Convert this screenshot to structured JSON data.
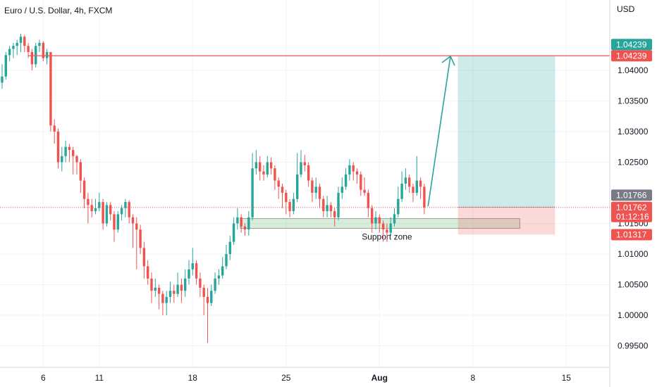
{
  "title": "Euro / U.S. Dollar, 4h, FXCM",
  "currency": "USD",
  "chart_data": {
    "type": "candlestick",
    "y_ticks": [
      "1.04000",
      "1.03500",
      "1.03000",
      "1.02500",
      "1.01500",
      "1.01000",
      "1.00500",
      "1.00000",
      "0.99500"
    ],
    "y_tick_values": [
      1.04,
      1.035,
      1.03,
      1.025,
      1.015,
      1.01,
      1.005,
      1.0,
      0.995
    ],
    "x_ticks": [
      "6",
      "11",
      "18",
      "25",
      "Aug",
      "8",
      "15"
    ],
    "x_tick_index": [
      11,
      26,
      51,
      76,
      101,
      126,
      151
    ],
    "ylim": [
      0.9915,
      1.0515
    ],
    "last_index": 113,
    "colors": {
      "up": "#26a69a",
      "down": "#ef5350",
      "target_line": "#ef5350",
      "arrow": "#26a69a"
    },
    "candles_close": [
      1.039,
      1.0425,
      1.0435,
      1.044,
      1.0445,
      1.0455,
      1.044,
      1.043,
      1.041,
      1.044,
      1.0445,
      1.042,
      1.043,
      1.034,
      1.031,
      1.025,
      1.026,
      1.0275,
      1.027,
      1.026,
      1.025,
      1.022,
      1.019,
      1.018,
      1.017,
      1.0175,
      1.0185,
      1.015,
      1.018,
      1.0165,
      1.014,
      1.0165,
      1.0175,
      1.0185,
      1.016,
      1.015,
      1.014,
      1.011,
      1.008,
      1.006,
      1.004,
      1.0045,
      1.0035,
      1.002,
      1.003,
      1.004,
      1.0035,
      1.005,
      1.004,
      1.006,
      1.0075,
      1.0085,
      1.006,
      1.0045,
      1.003,
      1.002,
      1.004,
      1.006,
      1.0065,
      1.008,
      1.01,
      1.012,
      1.015,
      1.016,
      1.0145,
      1.014,
      1.016,
      1.024,
      1.025,
      1.0235,
      1.023,
      1.025,
      1.024,
      1.022,
      1.021,
      1.02,
      1.0185,
      1.017,
      1.019,
      1.023,
      1.025,
      1.0245,
      1.022,
      1.02,
      1.021,
      1.019,
      1.017,
      1.018,
      1.017,
      1.016,
      1.02,
      1.021,
      1.023,
      1.0245,
      1.0235,
      1.023,
      1.0205,
      1.02,
      1.0175,
      1.015,
      1.016,
      1.015,
      1.014,
      1.0135,
      1.015,
      1.0165,
      1.019,
      1.0215,
      1.0225,
      1.021,
      1.02,
      1.022,
      1.021,
      1.0176
    ],
    "candles": [
      [
        1.038,
        1.041,
        1.037,
        1.039
      ],
      [
        1.039,
        1.043,
        1.0385,
        1.0425
      ],
      [
        1.0425,
        1.044,
        1.0415,
        1.0435
      ],
      [
        1.0435,
        1.0445,
        1.042,
        1.044
      ],
      [
        1.044,
        1.045,
        1.0425,
        1.0445
      ],
      [
        1.0445,
        1.046,
        1.043,
        1.0455
      ],
      [
        1.0455,
        1.0458,
        1.043,
        1.044
      ],
      [
        1.044,
        1.0445,
        1.042,
        1.043
      ],
      [
        1.043,
        1.0435,
        1.04,
        1.041
      ],
      [
        1.041,
        1.0445,
        1.0405,
        1.044
      ],
      [
        1.044,
        1.045,
        1.043,
        1.0445
      ],
      [
        1.0445,
        1.0448,
        1.0415,
        1.042
      ],
      [
        1.042,
        1.0435,
        1.041,
        1.043
      ],
      [
        1.043,
        1.043,
        1.03,
        1.031
      ],
      [
        1.031,
        1.032,
        1.028,
        1.03
      ],
      [
        1.03,
        1.0305,
        1.024,
        1.025
      ],
      [
        1.025,
        1.0275,
        1.0235,
        1.026
      ],
      [
        1.026,
        1.0285,
        1.025,
        1.0275
      ],
      [
        1.0275,
        1.028,
        1.025,
        1.027
      ],
      [
        1.027,
        1.0275,
        1.023,
        1.026
      ],
      [
        1.026,
        1.0262,
        1.023,
        1.025
      ],
      [
        1.025,
        1.0255,
        1.02,
        1.022
      ],
      [
        1.022,
        1.0225,
        1.0175,
        1.019
      ],
      [
        1.019,
        1.02,
        1.015,
        1.018
      ],
      [
        1.018,
        1.019,
        1.016,
        1.017
      ],
      [
        1.017,
        1.019,
        1.0165,
        1.0175
      ],
      [
        1.0175,
        1.02,
        1.017,
        1.0185
      ],
      [
        1.0185,
        1.019,
        1.014,
        1.015
      ],
      [
        1.015,
        1.0185,
        1.0145,
        1.018
      ],
      [
        1.018,
        1.0185,
        1.0155,
        1.0165
      ],
      [
        1.0165,
        1.017,
        1.012,
        1.014
      ],
      [
        1.014,
        1.017,
        1.0135,
        1.0165
      ],
      [
        1.0165,
        1.018,
        1.0155,
        1.0175
      ],
      [
        1.0175,
        1.019,
        1.016,
        1.0185
      ],
      [
        1.0185,
        1.0188,
        1.015,
        1.016
      ],
      [
        1.016,
        1.0165,
        1.011,
        1.015
      ],
      [
        1.015,
        1.016,
        1.0075,
        1.014
      ],
      [
        1.014,
        1.0148,
        1.01,
        1.011
      ],
      [
        1.011,
        1.012,
        1.006,
        1.008
      ],
      [
        1.008,
        1.009,
        1.005,
        1.006
      ],
      [
        1.006,
        1.007,
        1.002,
        1.004
      ],
      [
        1.004,
        1.006,
        1.003,
        1.0045
      ],
      [
        1.0045,
        1.005,
        1.001,
        1.0035
      ],
      [
        1.0035,
        1.004,
        1.0,
        1.002
      ],
      [
        1.002,
        1.004,
        1.0,
        1.003
      ],
      [
        1.003,
        1.0055,
        1.002,
        1.004
      ],
      [
        1.004,
        1.005,
        1.002,
        1.0035
      ],
      [
        1.0035,
        1.007,
        1.003,
        1.005
      ],
      [
        1.005,
        1.006,
        1.002,
        1.004
      ],
      [
        1.004,
        1.0075,
        1.003,
        1.006
      ],
      [
        1.006,
        1.009,
        1.005,
        1.0075
      ],
      [
        1.0075,
        1.011,
        1.0065,
        1.0085
      ],
      [
        1.0085,
        1.009,
        1.005,
        1.006
      ],
      [
        1.006,
        1.007,
        1.003,
        1.0045
      ],
      [
        1.0045,
        1.005,
        1.0,
        1.003
      ],
      [
        1.003,
        1.0045,
        0.9955,
        1.002
      ],
      [
        1.002,
        1.005,
        1.0015,
        1.004
      ],
      [
        1.004,
        1.007,
        1.0035,
        1.006
      ],
      [
        1.006,
        1.0075,
        1.005,
        1.0065
      ],
      [
        1.0065,
        1.0095,
        1.006,
        1.008
      ],
      [
        1.008,
        1.0115,
        1.0075,
        1.01
      ],
      [
        1.01,
        1.013,
        1.009,
        1.012
      ],
      [
        1.012,
        1.016,
        1.0115,
        1.015
      ],
      [
        1.015,
        1.0175,
        1.014,
        1.016
      ],
      [
        1.016,
        1.0165,
        1.0135,
        1.0145
      ],
      [
        1.0145,
        1.015,
        1.013,
        1.014
      ],
      [
        1.014,
        1.017,
        1.013,
        1.016
      ],
      [
        1.016,
        1.0265,
        1.0155,
        1.024
      ],
      [
        1.024,
        1.027,
        1.023,
        1.025
      ],
      [
        1.025,
        1.026,
        1.022,
        1.0235
      ],
      [
        1.0235,
        1.0245,
        1.022,
        1.023
      ],
      [
        1.023,
        1.026,
        1.0225,
        1.025
      ],
      [
        1.025,
        1.0258,
        1.023,
        1.024
      ],
      [
        1.024,
        1.0245,
        1.0205,
        1.022
      ],
      [
        1.022,
        1.0225,
        1.019,
        1.021
      ],
      [
        1.021,
        1.0215,
        1.0175,
        1.02
      ],
      [
        1.02,
        1.0205,
        1.0165,
        1.0185
      ],
      [
        1.0185,
        1.019,
        1.016,
        1.017
      ],
      [
        1.017,
        1.02,
        1.0165,
        1.019
      ],
      [
        1.019,
        1.0265,
        1.0185,
        1.023
      ],
      [
        1.023,
        1.027,
        1.0225,
        1.025
      ],
      [
        1.025,
        1.0262,
        1.0235,
        1.0245
      ],
      [
        1.0245,
        1.025,
        1.021,
        1.022
      ],
      [
        1.022,
        1.0225,
        1.0185,
        1.02
      ],
      [
        1.02,
        1.0225,
        1.019,
        1.021
      ],
      [
        1.021,
        1.0215,
        1.0175,
        1.019
      ],
      [
        1.019,
        1.0195,
        1.016,
        1.017
      ],
      [
        1.017,
        1.0195,
        1.016,
        1.018
      ],
      [
        1.018,
        1.0185,
        1.016,
        1.017
      ],
      [
        1.017,
        1.0175,
        1.0145,
        1.016
      ],
      [
        1.016,
        1.021,
        1.0155,
        1.02
      ],
      [
        1.02,
        1.0225,
        1.019,
        1.021
      ],
      [
        1.021,
        1.024,
        1.0205,
        1.023
      ],
      [
        1.023,
        1.0255,
        1.022,
        1.0245
      ],
      [
        1.0245,
        1.025,
        1.022,
        1.0235
      ],
      [
        1.0235,
        1.024,
        1.0215,
        1.023
      ],
      [
        1.023,
        1.0235,
        1.0195,
        1.0205
      ],
      [
        1.0205,
        1.0225,
        1.0195,
        1.02
      ],
      [
        1.02,
        1.0205,
        1.016,
        1.0175
      ],
      [
        1.0175,
        1.018,
        1.0135,
        1.015
      ],
      [
        1.015,
        1.017,
        1.014,
        1.016
      ],
      [
        1.016,
        1.0165,
        1.0135,
        1.015
      ],
      [
        1.015,
        1.0155,
        1.012,
        1.014
      ],
      [
        1.014,
        1.015,
        1.012,
        1.0135
      ],
      [
        1.0135,
        1.016,
        1.013,
        1.015
      ],
      [
        1.015,
        1.0175,
        1.0145,
        1.0165
      ],
      [
        1.0165,
        1.021,
        1.016,
        1.019
      ],
      [
        1.019,
        1.0235,
        1.0185,
        1.0215
      ],
      [
        1.0215,
        1.024,
        1.0205,
        1.0225
      ],
      [
        1.0225,
        1.023,
        1.02,
        1.021
      ],
      [
        1.021,
        1.0215,
        1.0185,
        1.02
      ],
      [
        1.02,
        1.026,
        1.0195,
        1.022
      ],
      [
        1.022,
        1.0225,
        1.019,
        1.021
      ],
      [
        1.021,
        1.0215,
        1.0165,
        1.0176
      ]
    ],
    "target_line": 1.04239,
    "support_zone": {
      "label": "Support zone",
      "top": 1.0158,
      "bottom": 1.0142,
      "from_index": 66,
      "to_index": 138
    },
    "position": {
      "entry": 1.01766,
      "target": 1.04239,
      "stop": 1.01317,
      "from_index": 122,
      "to_index": 148
    },
    "arrow": {
      "from_index": 114,
      "from_value": 1.0178,
      "to_index": 120,
      "to_value": 1.0423
    },
    "price_tags": [
      {
        "text": "1.04239",
        "value": 1.04239,
        "color": "#26a69a",
        "offset": -16
      },
      {
        "text": "1.04239",
        "value": 1.04239,
        "color": "#ef5350",
        "offset": 0
      },
      {
        "text": "1.01766",
        "value": 1.01766,
        "color": "#787b86",
        "offset": -17
      },
      {
        "text": "1.01762",
        "value": 1.01762,
        "color": "#ef5350",
        "offset": 0
      },
      {
        "text": "01:12:16",
        "value": 1.01762,
        "color": "#ef5350",
        "offset": 13
      },
      {
        "text": "1.01317",
        "value": 1.01317,
        "color": "#ef5350",
        "offset": 0
      }
    ],
    "current_price_line": 1.01762
  }
}
